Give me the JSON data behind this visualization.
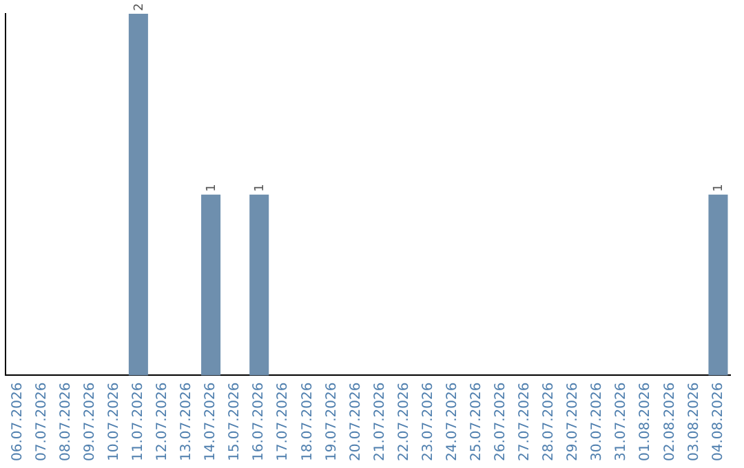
{
  "chart_data": {
    "type": "bar",
    "categories": [
      "06.07.2026",
      "07.07.2026",
      "08.07.2026",
      "09.07.2026",
      "10.07.2026",
      "11.07.2026",
      "12.07.2026",
      "13.07.2026",
      "14.07.2026",
      "15.07.2026",
      "16.07.2026",
      "17.07.2026",
      "18.07.2026",
      "19.07.2026",
      "20.07.2026",
      "21.07.2026",
      "22.07.2026",
      "23.07.2026",
      "24.07.2026",
      "25.07.2026",
      "26.07.2026",
      "27.07.2026",
      "28.07.2026",
      "29.07.2026",
      "30.07.2026",
      "31.07.2026",
      "01.08.2026",
      "02.08.2026",
      "03.08.2026",
      "04.08.2026"
    ],
    "values": [
      0,
      0,
      0,
      0,
      0,
      2,
      0,
      0,
      1,
      0,
      1,
      0,
      0,
      0,
      0,
      0,
      0,
      0,
      0,
      0,
      0,
      0,
      0,
      0,
      0,
      0,
      0,
      0,
      0,
      1
    ],
    "value_labels": [
      null,
      null,
      null,
      null,
      null,
      "2",
      null,
      null,
      "1",
      null,
      "1",
      null,
      null,
      null,
      null,
      null,
      null,
      null,
      null,
      null,
      null,
      null,
      null,
      null,
      null,
      null,
      null,
      null,
      null,
      "1"
    ],
    "color": "#6e8fae",
    "grid": false,
    "legend": false,
    "tick_labels": "x"
  }
}
